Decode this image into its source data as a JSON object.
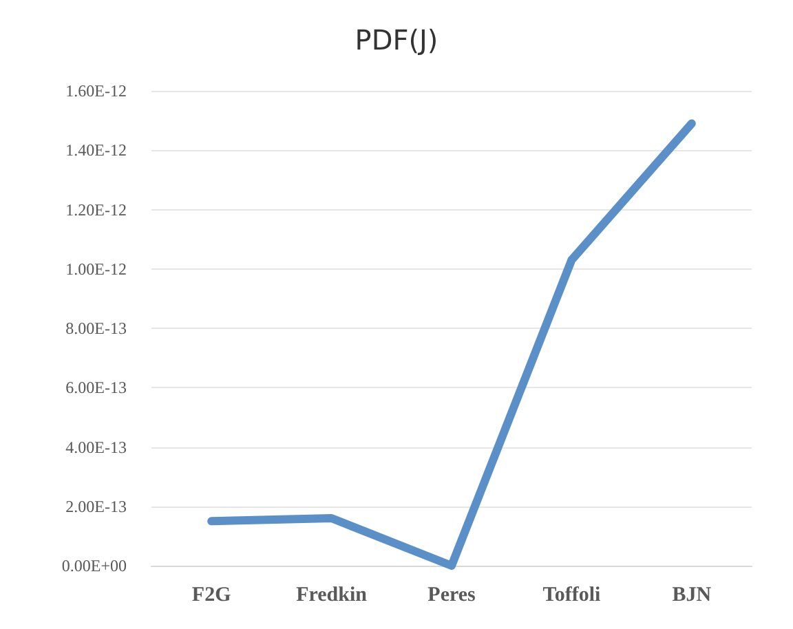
{
  "chart_data": {
    "type": "line",
    "title": "PDF(J)",
    "categories": [
      "F2G",
      "Fredkin",
      "Peres",
      "Toffoli",
      "BJN"
    ],
    "series": [
      {
        "color": "#5b8fc8",
        "values": [
          1.5e-13,
          1.6e-13,
          0,
          1.03e-12,
          1.49e-12
        ]
      }
    ],
    "ylim": [
      0,
      1.6e-12
    ],
    "yticks": [
      {
        "value": 0,
        "label": "0.00E+00"
      },
      {
        "value": 2e-13,
        "label": "2.00E-13"
      },
      {
        "value": 4e-13,
        "label": "4.00E-13"
      },
      {
        "value": 6e-13,
        "label": "6.00E-13"
      },
      {
        "value": 8e-13,
        "label": "8.00E-13"
      },
      {
        "value": 1e-12,
        "label": "1.00E-12"
      },
      {
        "value": 1.2e-12,
        "label": "1.20E-12"
      },
      {
        "value": 1.4e-12,
        "label": "1.40E-12"
      },
      {
        "value": 1.6e-12,
        "label": "1.60E-12"
      }
    ],
    "grid": "y",
    "marker": "none",
    "line_style": "solid"
  }
}
